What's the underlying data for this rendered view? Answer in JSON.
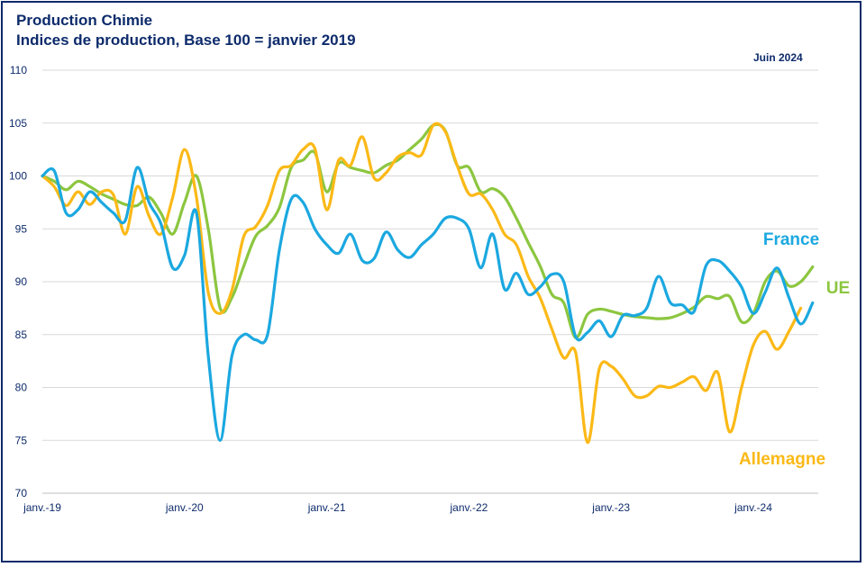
{
  "header": {
    "title_line1": "Production Chimie",
    "title_line2": "Indices de production, Base 100 = janvier 2019",
    "date": "Juin 2024"
  },
  "colors": {
    "france": "#1ba8e0",
    "ue": "#8cc63f",
    "allemagne": "#fbb917",
    "text": "#0d2b6b",
    "grid": "#d9d9d9"
  },
  "chart_data": {
    "type": "line",
    "x_tick_labels": [
      "janv.-19",
      "janv.-20",
      "janv.-21",
      "janv.-22",
      "janv.-23",
      "janv.-24"
    ],
    "ylim": [
      70,
      110
    ],
    "y_ticks": [
      70,
      75,
      80,
      85,
      90,
      95,
      100,
      105,
      110
    ],
    "grid": true,
    "series": [
      {
        "name": "France",
        "key": "france",
        "values": [
          100,
          100.5,
          96.5,
          96.8,
          98.5,
          97.5,
          96.5,
          95.8,
          100.8,
          97.5,
          95.5,
          91.3,
          92.5,
          96.5,
          83,
          75,
          83,
          85,
          84.5,
          85,
          93,
          97.8,
          97.5,
          95,
          93.5,
          92.7,
          94.5,
          92,
          92.2,
          94.7,
          93,
          92.3,
          93.5,
          94.5,
          96,
          96,
          95,
          91.3,
          94.5,
          89.3,
          90.8,
          88.8,
          89.5,
          90.7,
          90,
          84.8,
          85.2,
          86.3,
          84.8,
          86.8,
          86.8,
          87.5,
          90.5,
          88,
          87.8,
          87.2,
          91.5,
          92,
          91,
          89.5,
          87,
          89,
          91.3,
          88.5,
          86,
          88
        ],
        "label_text": "France"
      },
      {
        "name": "UE",
        "key": "ue",
        "values": [
          100,
          99.5,
          98.7,
          99.5,
          99,
          98.3,
          97.8,
          97.3,
          97.2,
          98,
          96.5,
          94.5,
          97.5,
          100,
          95,
          87.5,
          88.5,
          91.5,
          94.3,
          95.3,
          97,
          100.8,
          101.5,
          102.2,
          98.5,
          101.2,
          100.8,
          100.5,
          100.3,
          101,
          101.5,
          102.5,
          103.5,
          104.8,
          104.3,
          101,
          100.8,
          98.5,
          98.8,
          98,
          96,
          93.7,
          91.5,
          88.8,
          88,
          84.7,
          86.9,
          87.4,
          87.2,
          86.9,
          86.7,
          86.6,
          86.5,
          86.6,
          87,
          87.6,
          88.6,
          88.4,
          88.6,
          86.2,
          87,
          90,
          91,
          89.6,
          90,
          91.4
        ],
        "label_text": "UE"
      },
      {
        "name": "Allemagne",
        "key": "allemagne",
        "values": [
          100,
          99,
          97.2,
          98.5,
          97.3,
          98.5,
          98.2,
          94.5,
          99,
          96.2,
          94.5,
          98,
          102.5,
          98,
          89,
          87,
          89.2,
          94.3,
          95.2,
          97.2,
          100.5,
          101,
          102.5,
          102.6,
          96.8,
          101.5,
          101,
          103.7,
          99.8,
          100.3,
          101.8,
          102.2,
          102,
          104.8,
          104.2,
          101,
          98.3,
          98.3,
          96.8,
          94.5,
          93.5,
          90.5,
          88.5,
          85.5,
          82.8,
          83.3,
          74.8,
          81.8,
          82,
          80.8,
          79.2,
          79.2,
          80.1,
          80,
          80.5,
          81,
          79.7,
          81.4,
          75.8,
          80,
          84,
          85.3,
          83.6,
          85.3,
          87.5
        ],
        "label_text": "Allemagne"
      }
    ]
  }
}
